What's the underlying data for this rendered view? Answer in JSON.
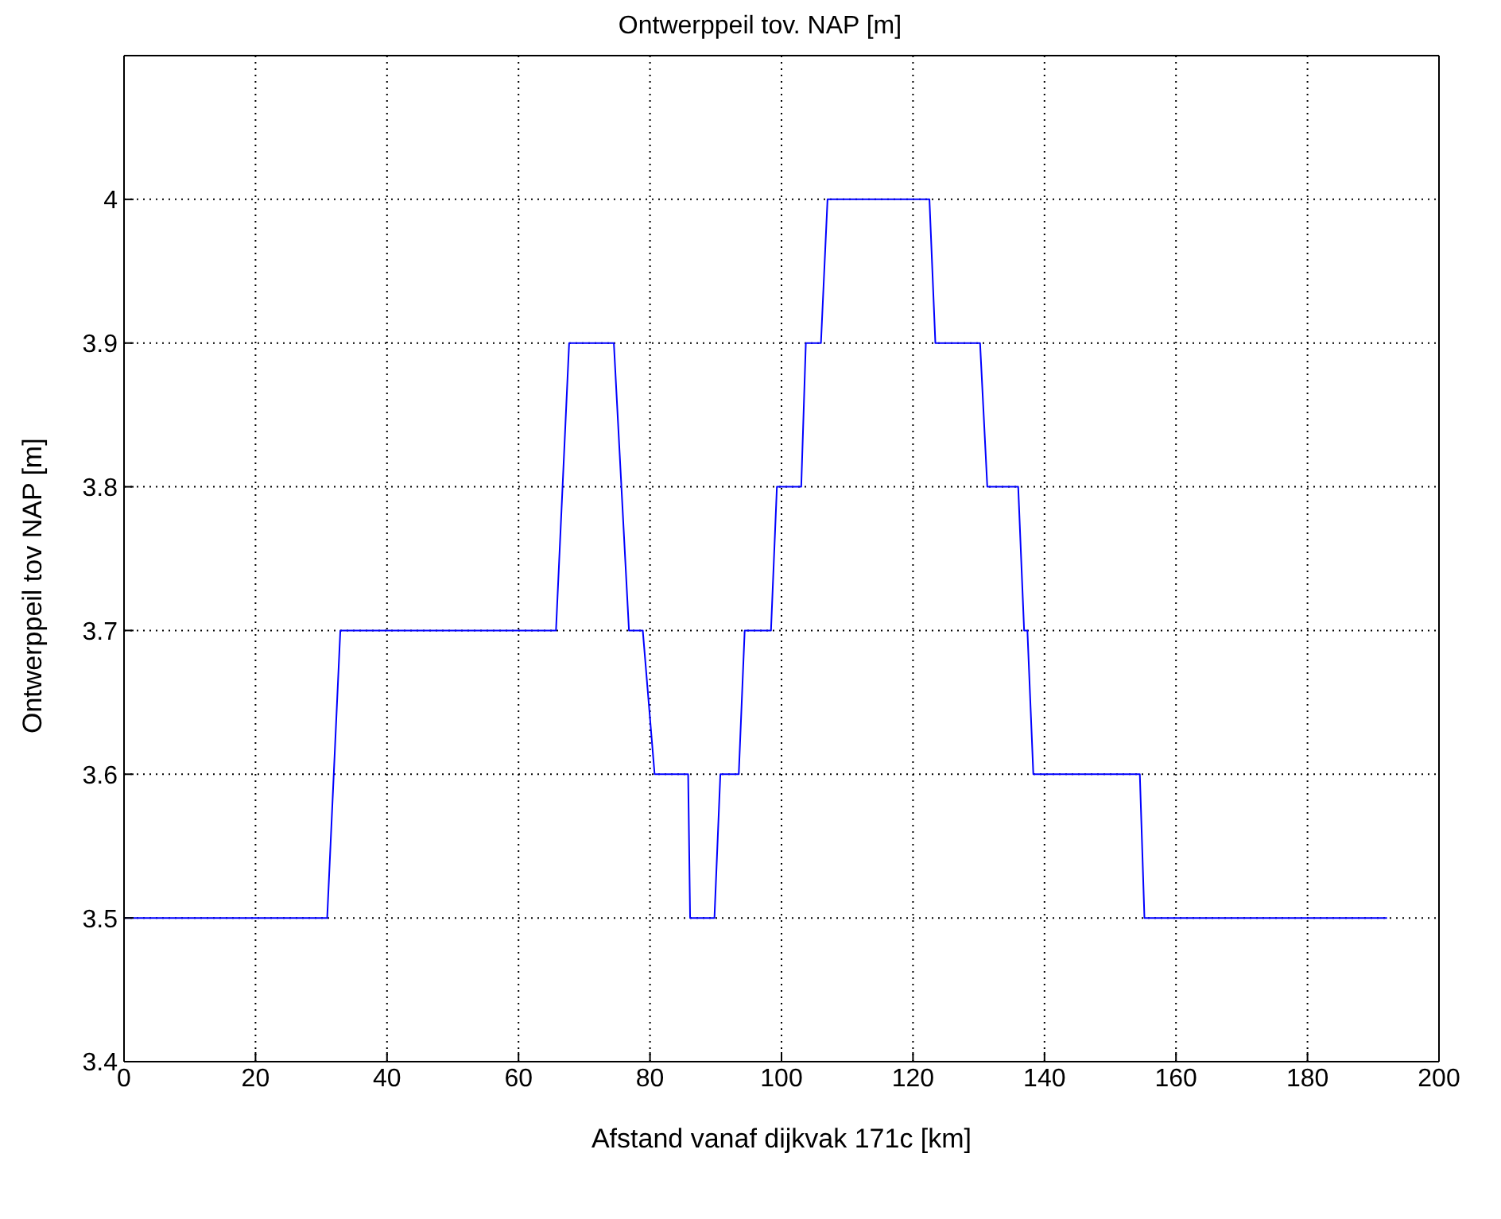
{
  "chart_data": {
    "type": "line",
    "title": "Ontwerppeil tov. NAP [m]",
    "xlabel": "Afstand vanaf dijkvak 171c [km]",
    "ylabel": "Ontwerppeil tov NAP [m]",
    "x": [
      0,
      30.9,
      32.9,
      65.7,
      67.7,
      74.5,
      76.8,
      78.9,
      80.7,
      85.8,
      86.1,
      89.8,
      90.7,
      93.5,
      94.4,
      98.4,
      99.3,
      103,
      103.7,
      106,
      107,
      122.5,
      123.4,
      130.2,
      131.3,
      136,
      136.9,
      137.4,
      138.3,
      154.5,
      155.2,
      192.1
    ],
    "series": [
      {
        "color": "#0000ff",
        "values": [
          3.5,
          3.5,
          3.7,
          3.7,
          3.9,
          3.9,
          3.7,
          3.7,
          3.6,
          3.6,
          3.5,
          3.5,
          3.6,
          3.6,
          3.7,
          3.7,
          3.8,
          3.8,
          3.9,
          3.9,
          4.0,
          4.0,
          3.9,
          3.9,
          3.8,
          3.8,
          3.7,
          3.7,
          3.6,
          3.6,
          3.5,
          3.5
        ]
      }
    ],
    "xlim": [
      0,
      200
    ],
    "xticks": [
      0,
      20,
      40,
      60,
      80,
      100,
      120,
      140,
      160,
      180,
      200
    ],
    "ylim": [
      3.4,
      4.1
    ],
    "yticks": [
      3.4,
      3.5,
      3.6,
      3.7,
      3.8,
      3.9,
      4
    ],
    "grid": true,
    "legend": false,
    "marker": "none",
    "line_style": "solid"
  }
}
